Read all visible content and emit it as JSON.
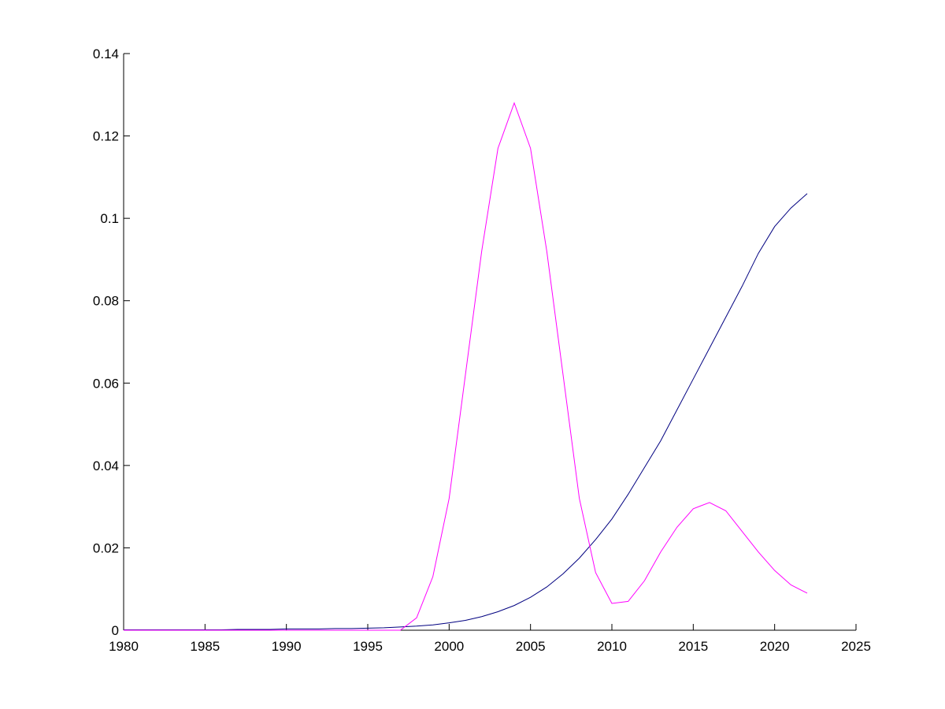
{
  "chart_data": {
    "type": "line",
    "x": [
      1980,
      1981,
      1982,
      1983,
      1984,
      1985,
      1986,
      1987,
      1988,
      1989,
      1990,
      1991,
      1992,
      1993,
      1994,
      1995,
      1996,
      1997,
      1998,
      1999,
      2000,
      2001,
      2002,
      2003,
      2004,
      2005,
      2006,
      2007,
      2008,
      2009,
      2010,
      2011,
      2012,
      2013,
      2014,
      2015,
      2016,
      2017,
      2018,
      2019,
      2020,
      2021,
      2022
    ],
    "series": [
      {
        "color": "#000080",
        "values": [
          0.0001,
          0.0001,
          0.0001,
          0.0001,
          0.0001,
          0.0001,
          0.0001,
          0.0002,
          0.0002,
          0.0002,
          0.0003,
          0.0003,
          0.0003,
          0.0004,
          0.0004,
          0.0005,
          0.0006,
          0.0008,
          0.001,
          0.0013,
          0.0018,
          0.0024,
          0.0033,
          0.0045,
          0.006,
          0.008,
          0.0105,
          0.0137,
          0.0175,
          0.022,
          0.027,
          0.033,
          0.0395,
          0.046,
          0.0535,
          0.061,
          0.0685,
          0.076,
          0.0835,
          0.0915,
          0.098,
          0.1025,
          0.106
        ]
      },
      {
        "color": "#ff00ff",
        "values": [
          0,
          0,
          0,
          0,
          0,
          0,
          0,
          0,
          0,
          0,
          0,
          0,
          0,
          0,
          0,
          0,
          0,
          0,
          0.003,
          0.013,
          0.032,
          0.062,
          0.092,
          0.117,
          0.128,
          0.117,
          0.092,
          0.062,
          0.032,
          0.014,
          0.0065,
          0.007,
          0.012,
          0.019,
          0.025,
          0.0295,
          0.031,
          0.029,
          0.024,
          0.019,
          0.0145,
          0.011,
          0.009
        ]
      }
    ],
    "xlim": [
      1980,
      2025
    ],
    "xticks": [
      1980,
      1985,
      1990,
      1995,
      2000,
      2005,
      2010,
      2015,
      2020,
      2025
    ],
    "ylim": [
      0,
      0.14
    ],
    "yticks": [
      0,
      0.02,
      0.04,
      0.06,
      0.08,
      0.1,
      0.12,
      0.14
    ]
  }
}
